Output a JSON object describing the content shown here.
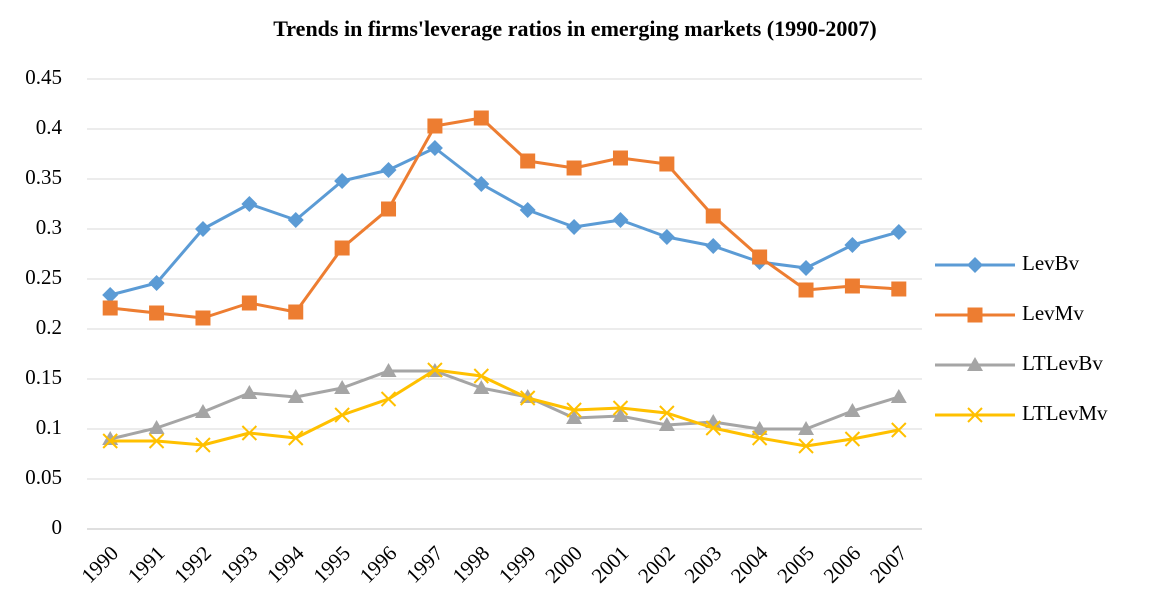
{
  "chart_data": {
    "type": "line",
    "title": "Trends in firms'leverage ratios in emerging markets (1990-2007)",
    "categories": [
      "1990",
      "1991",
      "1992",
      "1993",
      "1994",
      "1995",
      "1996",
      "1997",
      "1998",
      "1999",
      "2000",
      "2001",
      "2002",
      "2003",
      "2004",
      "2005",
      "2006",
      "2007"
    ],
    "series": [
      {
        "name": "LevBv",
        "color": "#5b9bd5",
        "marker": "diamond",
        "values": [
          0.234,
          0.246,
          0.3,
          0.325,
          0.309,
          0.348,
          0.359,
          0.381,
          0.345,
          0.319,
          0.302,
          0.309,
          0.292,
          0.283,
          0.267,
          0.261,
          0.284,
          0.297
        ]
      },
      {
        "name": "LevMv",
        "color": "#ed7d31",
        "marker": "square",
        "values": [
          0.221,
          0.216,
          0.211,
          0.226,
          0.217,
          0.281,
          0.32,
          0.403,
          0.411,
          0.368,
          0.361,
          0.371,
          0.365,
          0.313,
          0.272,
          0.239,
          0.243,
          0.24
        ]
      },
      {
        "name": "LTLevBv",
        "color": "#a5a5a5",
        "marker": "triangle",
        "values": [
          0.09,
          0.101,
          0.117,
          0.136,
          0.132,
          0.141,
          0.158,
          0.158,
          0.141,
          0.132,
          0.111,
          0.113,
          0.104,
          0.107,
          0.1,
          0.1,
          0.118,
          0.132
        ]
      },
      {
        "name": "LTLevMv",
        "color": "#ffc000",
        "marker": "x",
        "values": [
          0.088,
          0.088,
          0.084,
          0.096,
          0.091,
          0.114,
          0.13,
          0.159,
          0.153,
          0.131,
          0.119,
          0.121,
          0.116,
          0.101,
          0.091,
          0.083,
          0.09,
          0.099
        ]
      }
    ],
    "ylim": [
      0,
      0.45
    ],
    "yticks": [
      0,
      0.05,
      0.1,
      0.15,
      0.2,
      0.25,
      0.3,
      0.35,
      0.4,
      0.45
    ],
    "grid": true,
    "legend": "right"
  }
}
